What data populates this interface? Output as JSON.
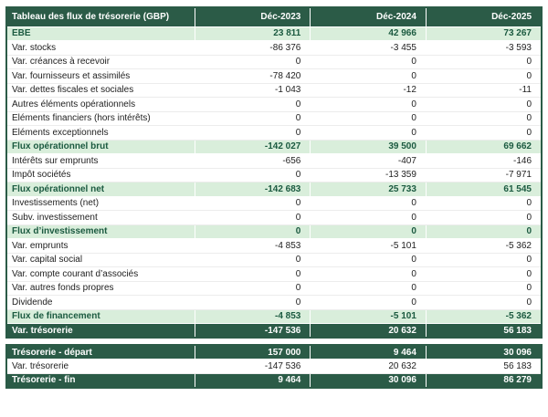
{
  "title": "Tableau des flux de trésorerie (GBP)",
  "columns": [
    "Déc-2023",
    "Déc-2024",
    "Déc-2025"
  ],
  "colors": {
    "header_bg": "#2B5B47",
    "highlight_row_bg": "#D9EEDB",
    "highlight_text": "#1B5A40"
  },
  "main_rows": [
    {
      "label": "EBE",
      "style": "highlight",
      "values": [
        "23 811",
        "42 966",
        "73 267"
      ]
    },
    {
      "label": "Var. stocks",
      "style": "normal",
      "values": [
        "-86 376",
        "-3 455",
        "-3 593"
      ]
    },
    {
      "label": "Var. créances à recevoir",
      "style": "normal",
      "values": [
        "0",
        "0",
        "0"
      ]
    },
    {
      "label": "Var. fournisseurs et assimilés",
      "style": "normal",
      "values": [
        "-78 420",
        "0",
        "0"
      ]
    },
    {
      "label": "Var. dettes fiscales et sociales",
      "style": "normal",
      "values": [
        "-1 043",
        "-12",
        "-11"
      ]
    },
    {
      "label": "Autres éléments opérationnels",
      "style": "normal",
      "values": [
        "0",
        "0",
        "0"
      ]
    },
    {
      "label": "Eléments financiers (hors intérêts)",
      "style": "normal",
      "values": [
        "0",
        "0",
        "0"
      ]
    },
    {
      "label": "Eléments exceptionnels",
      "style": "normal",
      "values": [
        "0",
        "0",
        "0"
      ]
    },
    {
      "label": "Flux opérationnel brut",
      "style": "highlight",
      "values": [
        "-142 027",
        "39 500",
        "69 662"
      ]
    },
    {
      "label": "Intérêts sur emprunts",
      "style": "normal",
      "values": [
        "-656",
        "-407",
        "-146"
      ]
    },
    {
      "label": "Impôt sociétés",
      "style": "normal",
      "values": [
        "0",
        "-13 359",
        "-7 971"
      ]
    },
    {
      "label": "Flux opérationnel net",
      "style": "highlight",
      "values": [
        "-142 683",
        "25 733",
        "61 545"
      ]
    },
    {
      "label": "Investissements (net)",
      "style": "normal",
      "values": [
        "0",
        "0",
        "0"
      ]
    },
    {
      "label": "Subv. investissement",
      "style": "normal",
      "values": [
        "0",
        "0",
        "0"
      ]
    },
    {
      "label": "Flux d’investissement",
      "style": "highlight",
      "values": [
        "0",
        "0",
        "0"
      ]
    },
    {
      "label": "Var. emprunts",
      "style": "normal",
      "values": [
        "-4 853",
        "-5 101",
        "-5 362"
      ]
    },
    {
      "label": "Var. capital social",
      "style": "normal",
      "values": [
        "0",
        "0",
        "0"
      ]
    },
    {
      "label": "Var. compte courant d’associés",
      "style": "normal",
      "values": [
        "0",
        "0",
        "0"
      ]
    },
    {
      "label": "Var. autres fonds propres",
      "style": "normal",
      "values": [
        "0",
        "0",
        "0"
      ]
    },
    {
      "label": "Dividende",
      "style": "normal",
      "values": [
        "0",
        "0",
        "0"
      ]
    },
    {
      "label": "Flux de financement",
      "style": "highlight",
      "values": [
        "-4 853",
        "-5 101",
        "-5 362"
      ]
    },
    {
      "label": "Var. trésorerie",
      "style": "total",
      "values": [
        "-147 536",
        "20 632",
        "56 183"
      ]
    }
  ],
  "summary_rows": [
    {
      "label": "Trésorerie - départ",
      "style": "total",
      "values": [
        "157 000",
        "9 464",
        "30 096"
      ]
    },
    {
      "label": "Var. trésorerie",
      "style": "normal",
      "values": [
        "-147 536",
        "20 632",
        "56 183"
      ]
    },
    {
      "label": "Trésorerie - fin",
      "style": "total",
      "values": [
        "9 464",
        "30 096",
        "86 279"
      ]
    }
  ]
}
